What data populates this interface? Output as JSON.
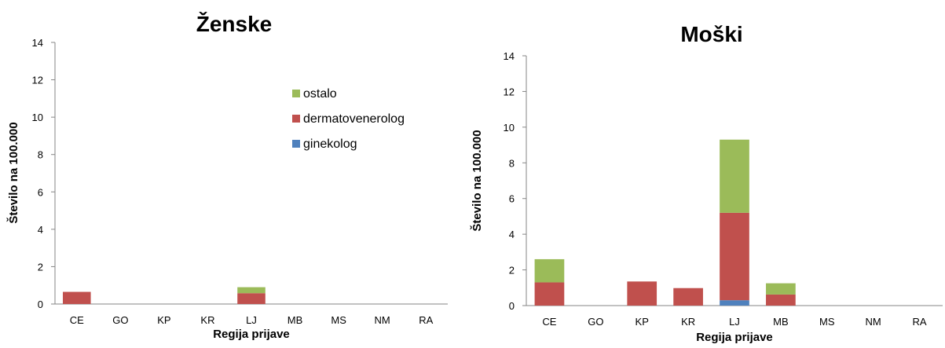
{
  "chart_data": [
    {
      "type": "bar",
      "stacked": true,
      "title": "Ženske",
      "xlabel": "Regija prijave",
      "ylabel": "Število na 100.000",
      "ylim": [
        0,
        14
      ],
      "yticks": [
        0,
        2,
        4,
        6,
        8,
        10,
        12,
        14
      ],
      "categories": [
        "CE",
        "GO",
        "KP",
        "KR",
        "LJ",
        "MB",
        "MS",
        "NM",
        "RA"
      ],
      "legend": "top-right",
      "series": [
        {
          "name": "ginekolog",
          "color": "#4f81bd",
          "values": [
            0,
            0,
            0,
            0,
            0,
            0,
            0,
            0,
            0
          ]
        },
        {
          "name": "dermatovenerolog",
          "color": "#c0504d",
          "values": [
            0.65,
            0,
            0,
            0,
            0.58,
            0,
            0,
            0,
            0
          ]
        },
        {
          "name": "ostalo",
          "color": "#9bbb59",
          "values": [
            0,
            0,
            0,
            0,
            0.32,
            0,
            0,
            0,
            0
          ]
        }
      ]
    },
    {
      "type": "bar",
      "stacked": true,
      "title": "Moški",
      "xlabel": "Regija prijave",
      "ylabel": "Število na 100.000",
      "ylim": [
        0,
        14
      ],
      "yticks": [
        0,
        2,
        4,
        6,
        8,
        10,
        12,
        14
      ],
      "categories": [
        "CE",
        "GO",
        "KP",
        "KR",
        "LJ",
        "MB",
        "MS",
        "NM",
        "RA"
      ],
      "series": [
        {
          "name": "ginekolog",
          "color": "#4f81bd",
          "values": [
            0,
            0,
            0,
            0,
            0.3,
            0,
            0,
            0,
            0
          ]
        },
        {
          "name": "dermatovenerolog",
          "color": "#c0504d",
          "values": [
            1.3,
            0,
            1.35,
            0.98,
            4.9,
            0.62,
            0,
            0,
            0
          ]
        },
        {
          "name": "ostalo",
          "color": "#9bbb59",
          "values": [
            1.3,
            0,
            0,
            0,
            4.1,
            0.63,
            0,
            0,
            0
          ]
        }
      ]
    }
  ]
}
